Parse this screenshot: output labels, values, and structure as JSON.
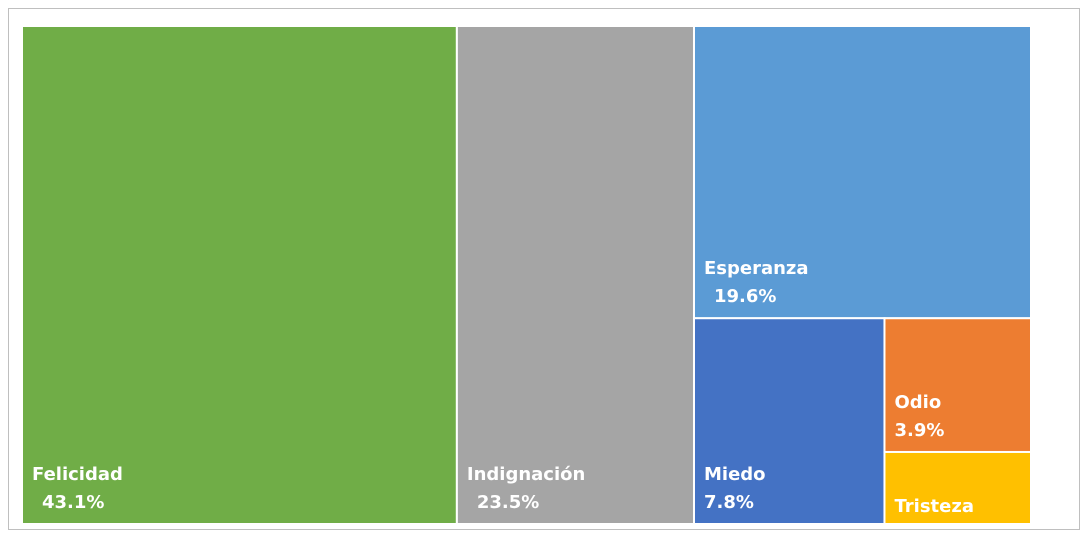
{
  "chart_data": {
    "type": "treemap",
    "categories": [
      "Felicidad",
      "Indignación",
      "Esperanza",
      "Miedo",
      "Odio",
      "Tristeza"
    ],
    "values": [
      43.1,
      23.5,
      19.6,
      7.8,
      3.9,
      2.1
    ],
    "value_labels": [
      "43.1%",
      "23.5%",
      "19.6%",
      "7.8%",
      "3.9%",
      null
    ],
    "colors": [
      "#70ad47",
      "#a5a5a5",
      "#5b9bd5",
      "#4472c4",
      "#ed7d31",
      "#ffc000"
    ]
  }
}
